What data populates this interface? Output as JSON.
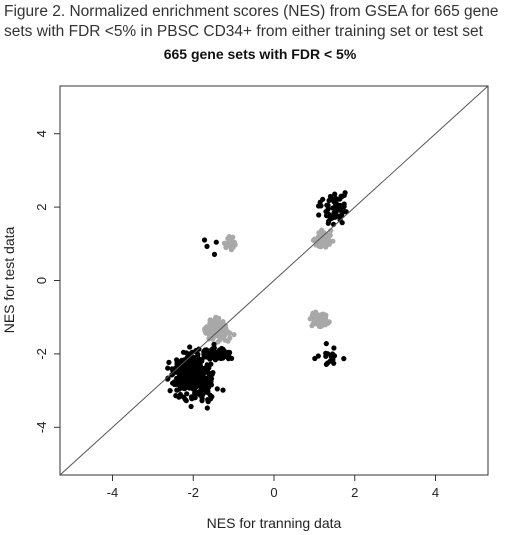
{
  "caption": "Figure 2. Normalized enrichment scores (NES) from GSEA for 665 gene sets with FDR <5% in PBSC CD34+ from either training set or test set",
  "chart_data": {
    "type": "scatter",
    "title": "665 gene sets with FDR < 5%",
    "xlabel": "NES for tranning data",
    "ylabel": "NES for test data",
    "xlim": [
      -5.3,
      5.3
    ],
    "ylim": [
      -5.3,
      5.3
    ],
    "xticks": [
      -4,
      -2,
      0,
      2,
      4
    ],
    "yticks": [
      -4,
      -2,
      0,
      2,
      4
    ],
    "reference_line": "y = x",
    "grid": false,
    "colors": {
      "black": "#000000",
      "gray": "#a8a8a8",
      "line": "#555555"
    },
    "series": [
      {
        "color": "black",
        "clusters": [
          {
            "center": [
              -2.0,
              -2.6
            ],
            "spread": [
              0.55,
              0.65
            ],
            "count": 420
          },
          {
            "center": [
              -1.4,
              -2.0
            ],
            "spread": [
              0.35,
              0.2
            ],
            "count": 110
          },
          {
            "center": [
              1.5,
              2.0
            ],
            "spread": [
              0.45,
              0.55
            ],
            "count": 60
          },
          {
            "center": [
              1.4,
              -2.1
            ],
            "spread": [
              0.35,
              0.35
            ],
            "count": 18
          },
          {
            "center": [
              -1.5,
              1.0
            ],
            "spread": [
              0.25,
              0.35
            ],
            "count": 4
          }
        ]
      },
      {
        "color": "gray",
        "clusters": [
          {
            "center": [
              -1.4,
              -1.35
            ],
            "spread": [
              0.35,
              0.3
            ],
            "count": 130
          },
          {
            "center": [
              -1.1,
              1.0
            ],
            "spread": [
              0.18,
              0.2
            ],
            "count": 35
          },
          {
            "center": [
              1.2,
              1.1
            ],
            "spread": [
              0.3,
              0.25
            ],
            "count": 60
          },
          {
            "center": [
              1.1,
              -1.05
            ],
            "spread": [
              0.3,
              0.25
            ],
            "count": 55
          }
        ]
      }
    ]
  }
}
